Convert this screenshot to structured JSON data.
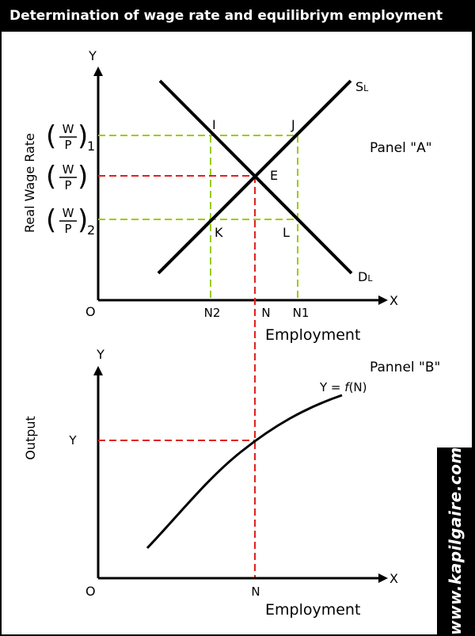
{
  "header": {
    "title": "Determination of wage rate and equilibriym employment"
  },
  "panel_a": {
    "title": "Panel \"A\"",
    "y_axis": "Y",
    "x_axis": "X",
    "origin": "O",
    "ylabel": "Real Wage Rate",
    "xlabel": "Employment",
    "wage_labels": [
      {
        "num": "W",
        "den": "P",
        "sub": "1"
      },
      {
        "num": "W",
        "den": "P",
        "sub": ""
      },
      {
        "num": "W",
        "den": "P",
        "sub": "2"
      }
    ],
    "x_ticks": [
      "N2",
      "N",
      "N1"
    ],
    "points": [
      "I",
      "J",
      "E",
      "K",
      "L"
    ],
    "supply": {
      "main": "S",
      "sub": "L"
    },
    "demand": {
      "main": "D",
      "sub": "L"
    }
  },
  "panel_b": {
    "title": "Pannel \"B\"",
    "y_axis": "Y",
    "x_axis": "X",
    "origin": "O",
    "ylabel": "Output",
    "xlabel": "Employment",
    "y_tick": "Y",
    "x_tick": "N",
    "function_pre": "Y = ",
    "function_f": "f",
    "function_post": "(N)"
  },
  "watermark": "www.kapilgaire.com",
  "colors": {
    "guide_green": "#99cc00",
    "guide_red": "#e02020",
    "background": "#000000",
    "panel": "#ffffff"
  }
}
